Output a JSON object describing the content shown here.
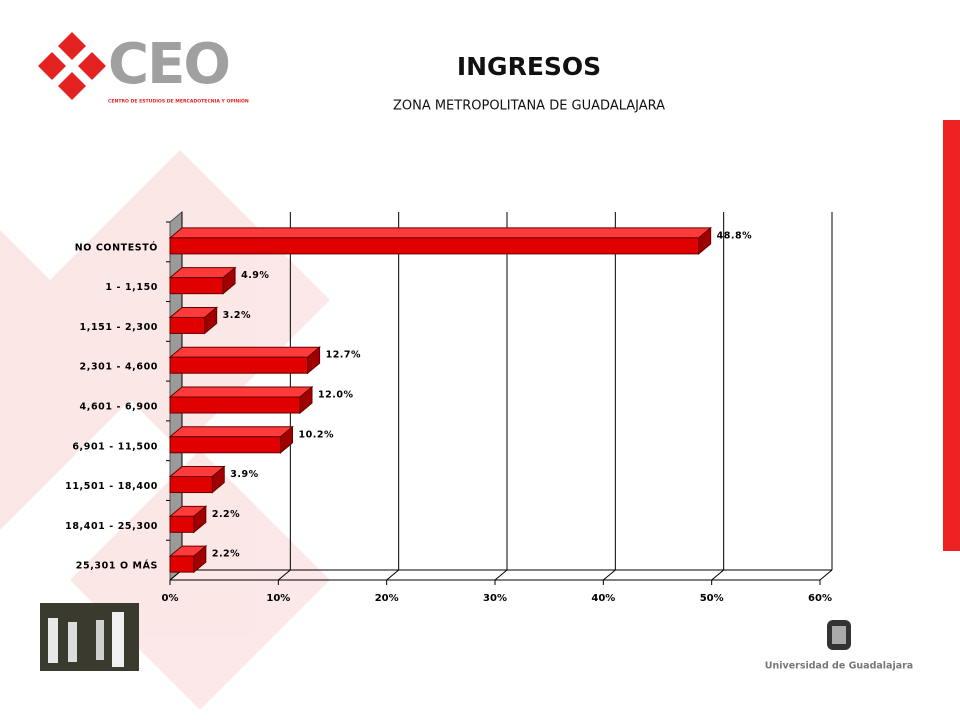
{
  "header": {
    "logo_text": "CEO",
    "logo_subtext": "CENTRO DE ESTUDIOS DE MERCADOTECNIA Y OPINIÓN",
    "institution": "Universidad de Guadalajara"
  },
  "chart_data": {
    "type": "bar",
    "title": "INGRESOS",
    "subtitle": "ZONA METROPOLITANA DE GUADALAJARA",
    "categories": [
      "NO CONTESTÓ",
      "1 - 1,150",
      "1,151 - 2,300",
      "2,301 - 4,600",
      "4,601 - 6,900",
      "6,901 - 11,500",
      "11,501 - 18,400",
      "18,401 - 25,300",
      "25,301 O MÁS"
    ],
    "values": [
      48.8,
      4.9,
      3.2,
      12.7,
      12.0,
      10.2,
      3.9,
      2.2,
      2.2
    ],
    "value_labels": [
      "48.8%",
      "4.9%",
      "3.2%",
      "12.7%",
      "12.0%",
      "10.2%",
      "3.9%",
      "2.2%",
      "2.2%"
    ],
    "color": "#e00000",
    "xlim": [
      0,
      60
    ],
    "xticks": [
      {
        "value": 0,
        "label": "0%"
      },
      {
        "value": 10,
        "label": "10%"
      },
      {
        "value": 20,
        "label": "20%"
      },
      {
        "value": 30,
        "label": "30%"
      },
      {
        "value": 40,
        "label": "40%"
      },
      {
        "value": 50,
        "label": "50%"
      },
      {
        "value": 60,
        "label": "60%"
      }
    ],
    "grid": true
  }
}
